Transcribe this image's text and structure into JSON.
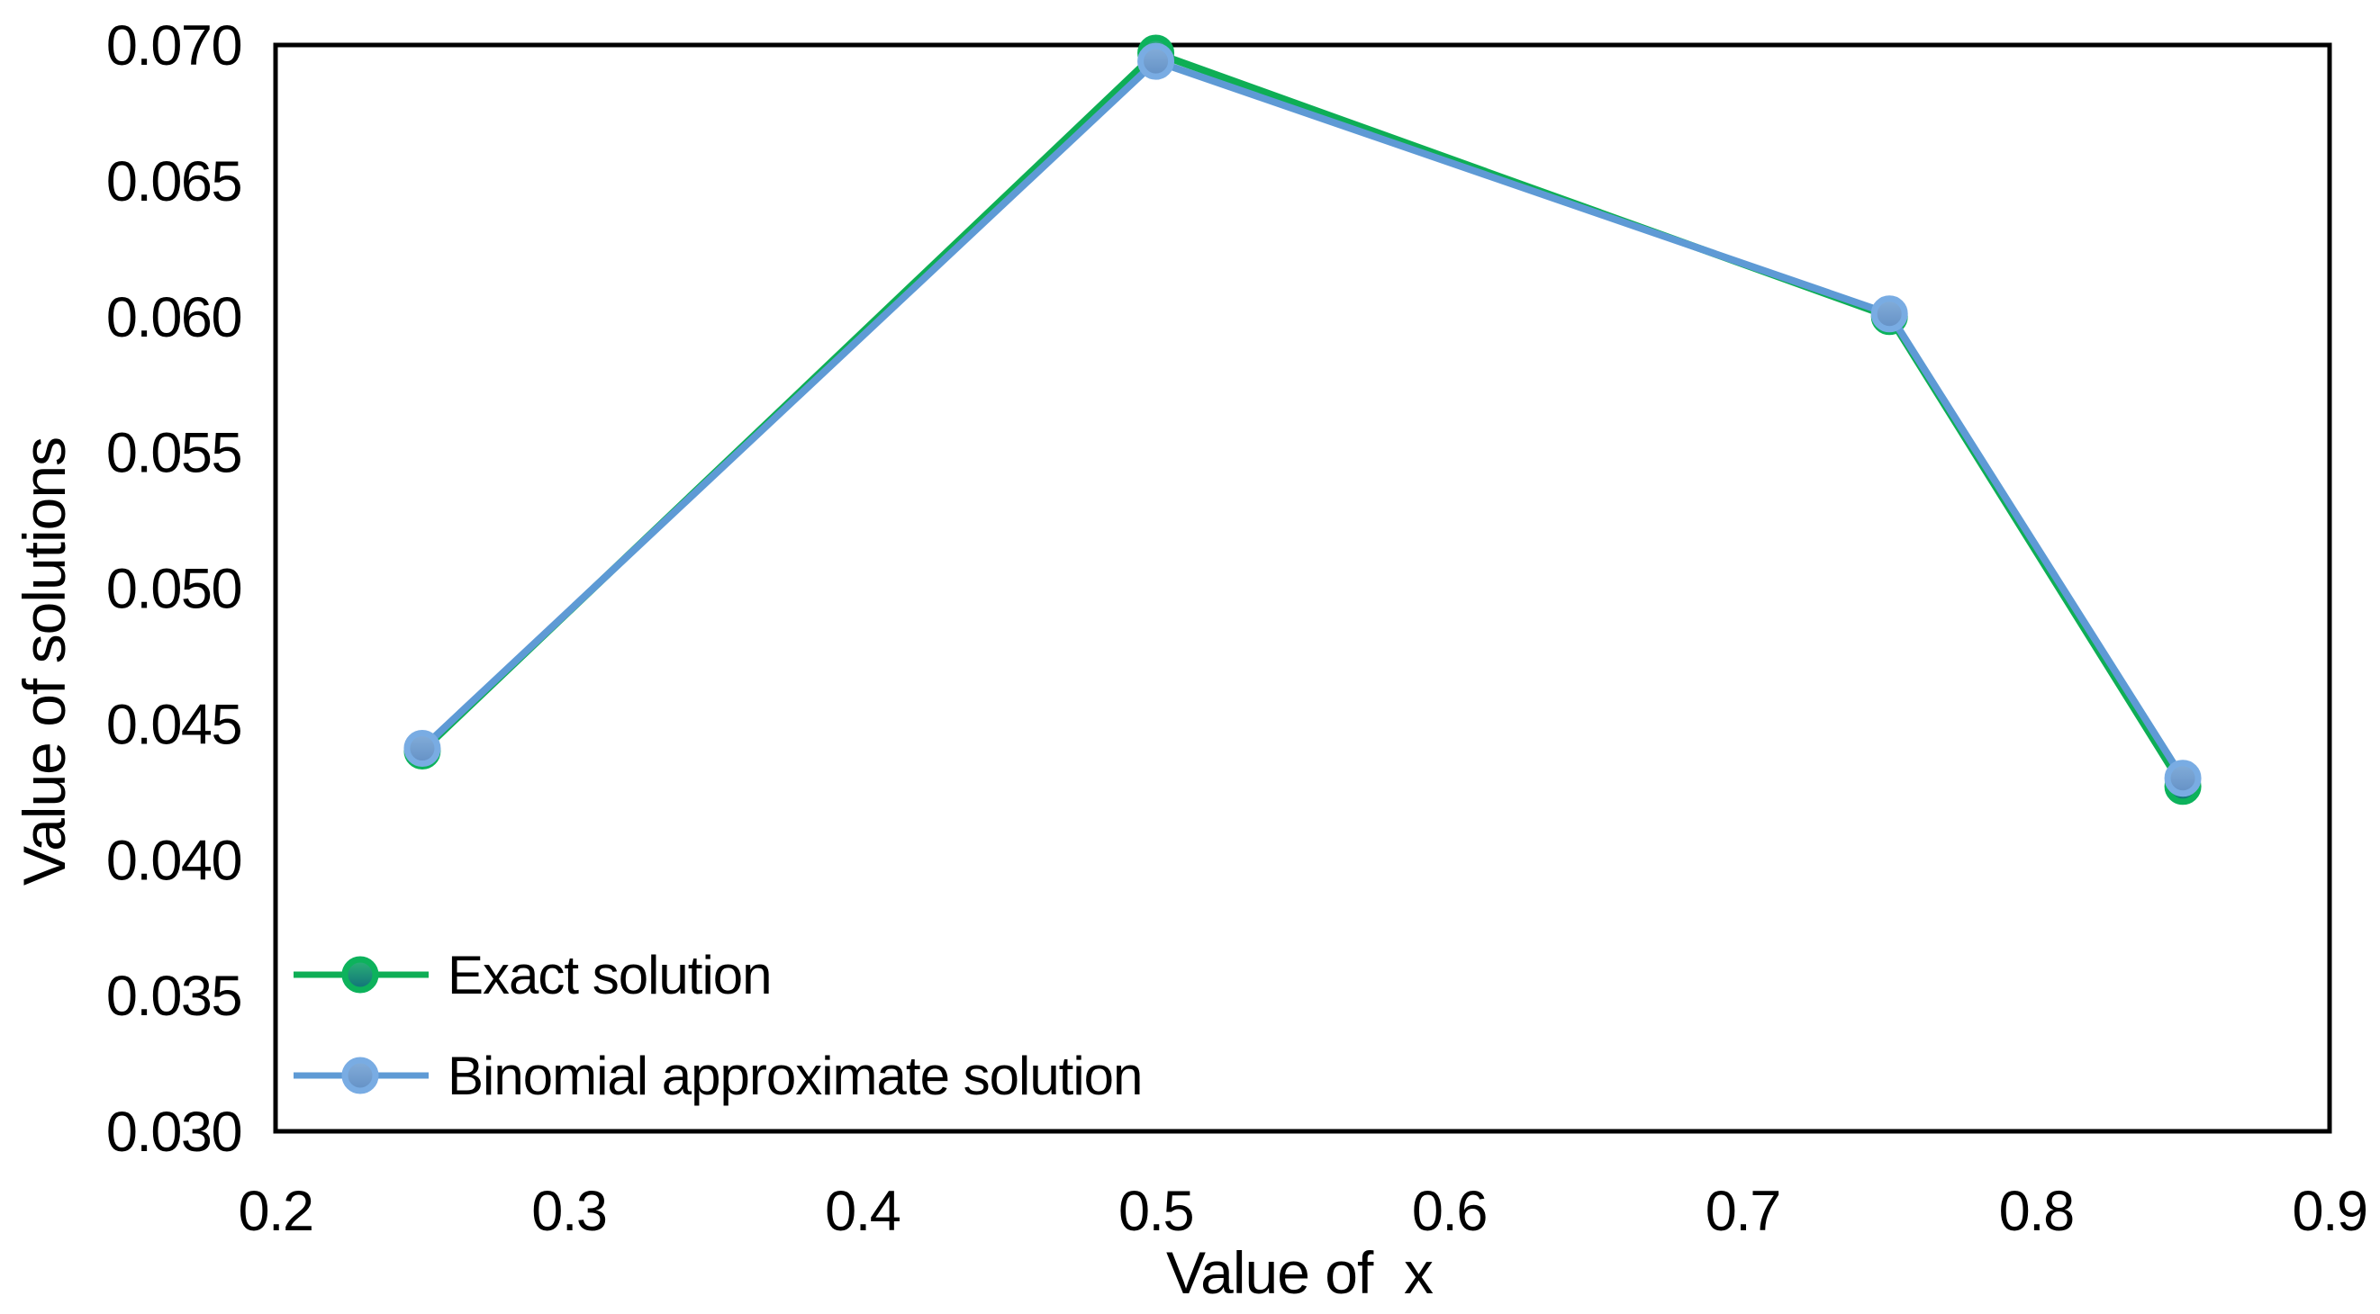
{
  "chart_data": {
    "type": "line",
    "title": "",
    "xlabel": "Value of  x",
    "ylabel": "Value of solutions",
    "xlim": [
      0.2,
      0.9
    ],
    "ylim": [
      0.03,
      0.07
    ],
    "x_ticks": [
      "0.2",
      "0.3",
      "0.4",
      "0.5",
      "0.6",
      "0.7",
      "0.8",
      "0.9"
    ],
    "y_ticks": [
      "0.030",
      "0.035",
      "0.040",
      "0.045",
      "0.050",
      "0.055",
      "0.060",
      "0.065",
      "0.070"
    ],
    "grid": false,
    "legend_position": "inside-bottom-left",
    "x": [
      0.25,
      0.5,
      0.75,
      0.85
    ],
    "series": [
      {
        "name": "Exact solution",
        "values": [
          0.044,
          0.0697,
          0.06,
          0.0427
        ],
        "line_color": "#0EAE55",
        "marker_ring_color": "#0DB25C",
        "marker_fill_top": "#2CB475",
        "marker_fill_bottom": "#10707A"
      },
      {
        "name": "Binomial approximate solution",
        "values": [
          0.0441,
          0.0694,
          0.0601,
          0.043
        ],
        "line_color": "#5E9AD5",
        "marker_ring_color": "#79ACE3",
        "marker_fill_top": "#84AEDA",
        "marker_fill_bottom": "#6390C5"
      }
    ]
  }
}
